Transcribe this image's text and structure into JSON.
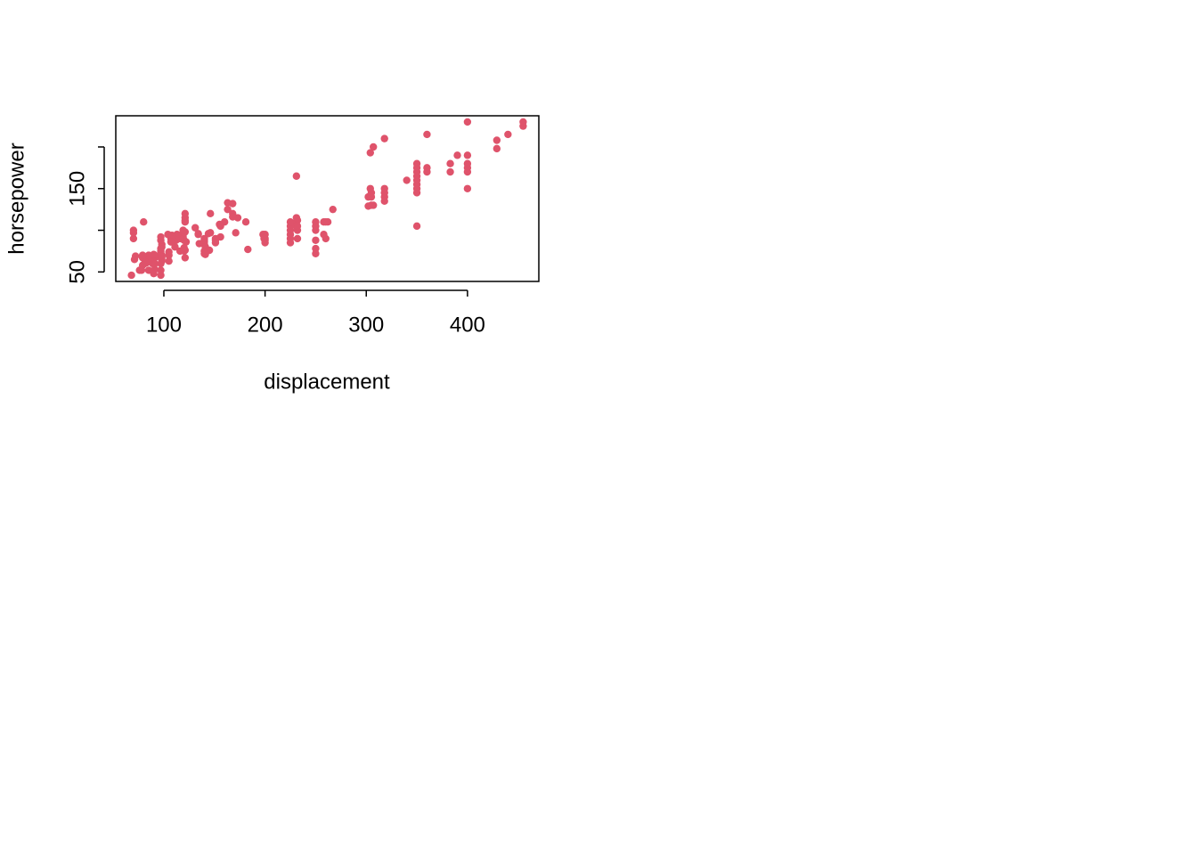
{
  "chart_data": {
    "type": "scatter",
    "xlabel": "displacement",
    "ylabel": "horsepower",
    "color": "#DF536B",
    "xlim": [
      52.5,
      470.5
    ],
    "xticks": [
      100,
      200,
      300,
      400
    ],
    "ylim": [
      38.6,
      237.4
    ],
    "yticks": [
      50,
      100,
      150,
      200
    ],
    "x": [
      455,
      455,
      440,
      429,
      429,
      400,
      400,
      400,
      400,
      400,
      400,
      390,
      383,
      383,
      360,
      360,
      360,
      350,
      350,
      350,
      350,
      350,
      350,
      350,
      350,
      350,
      340,
      318,
      318,
      318,
      318,
      318,
      307,
      307,
      304,
      304,
      302,
      302,
      305,
      305,
      305,
      258,
      258,
      262,
      260,
      260,
      250,
      250,
      250,
      250,
      250,
      250,
      232,
      232,
      232,
      231,
      231,
      231,
      231,
      232,
      225,
      225,
      225,
      225,
      225,
      225,
      267,
      200,
      200,
      200,
      200,
      198,
      199,
      183,
      181,
      173,
      171,
      168,
      168,
      168,
      163,
      163,
      160,
      156,
      156,
      155,
      151,
      151,
      151,
      146,
      146,
      145,
      144,
      141,
      141,
      140,
      140,
      140,
      140,
      140,
      140,
      135,
      134,
      134,
      131,
      122,
      121,
      121,
      121,
      121,
      121,
      121,
      121,
      120,
      120,
      120,
      120,
      119,
      119,
      119,
      116,
      116,
      114,
      113,
      112,
      111,
      110,
      108,
      108,
      107,
      107,
      105,
      105,
      105,
      104,
      98,
      98,
      98,
      98,
      98,
      98,
      97,
      97,
      97,
      97,
      97,
      97,
      97,
      97,
      96,
      91,
      91,
      91,
      91,
      91,
      90,
      90,
      90,
      89,
      89,
      86,
      86,
      85,
      85,
      85,
      81,
      79,
      79,
      79,
      78,
      76,
      72,
      71,
      70,
      70,
      70,
      68,
      80,
      83
    ],
    "values": [
      225,
      230,
      215,
      198,
      208,
      230,
      175,
      170,
      180,
      190,
      150,
      190,
      170,
      180,
      215,
      175,
      170,
      165,
      150,
      145,
      155,
      160,
      170,
      175,
      180,
      105,
      160,
      150,
      140,
      135,
      145,
      210,
      200,
      130,
      150,
      193,
      140,
      129,
      130,
      140,
      145,
      110,
      95,
      110,
      110,
      90,
      100,
      105,
      110,
      88,
      72,
      78,
      90,
      100,
      112,
      165,
      110,
      105,
      115,
      105,
      95,
      100,
      105,
      110,
      85,
      90,
      125,
      85,
      88,
      90,
      95,
      95,
      90,
      77,
      110,
      115,
      97,
      120,
      132,
      116,
      133,
      125,
      110,
      105,
      92,
      107,
      90,
      85,
      88,
      97,
      120,
      76,
      96,
      71,
      80,
      72,
      75,
      83,
      86,
      88,
      90,
      84,
      96,
      95,
      103,
      86,
      67,
      110,
      112,
      115,
      120,
      98,
      76,
      88,
      97,
      75,
      79,
      97,
      100,
      92,
      90,
      75,
      91,
      95,
      88,
      80,
      87,
      93,
      94,
      90,
      86,
      63,
      70,
      74,
      95,
      63,
      65,
      68,
      70,
      80,
      83,
      46,
      52,
      60,
      67,
      75,
      78,
      88,
      92,
      69,
      53,
      60,
      67,
      68,
      70,
      48,
      70,
      71,
      60,
      62,
      64,
      65,
      52,
      65,
      70,
      60,
      58,
      67,
      70,
      52,
      52,
      69,
      65,
      90,
      97,
      100,
      46,
      110,
      61
    ]
  }
}
